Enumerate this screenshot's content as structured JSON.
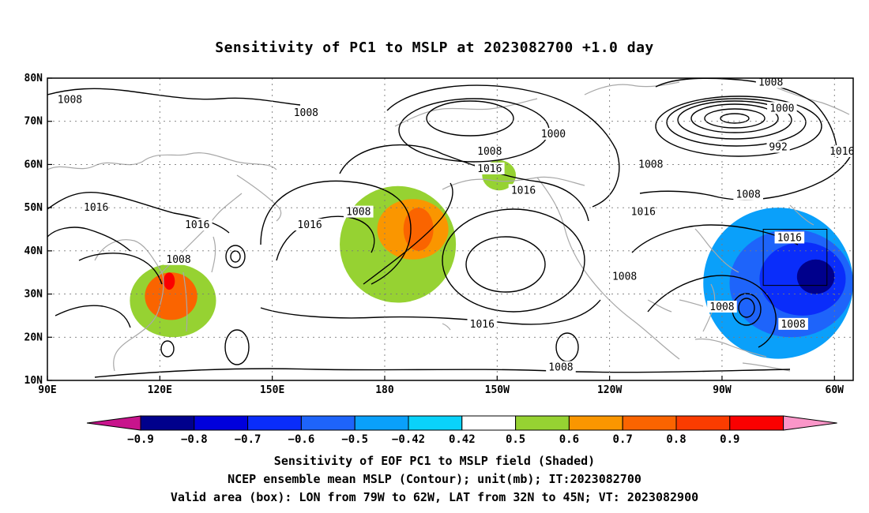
{
  "title": "Sensitivity of PC1 to MSLP at 2023082700 +1.0 day",
  "map": {
    "lat_ticks": [
      "80N",
      "70N",
      "60N",
      "50N",
      "40N",
      "30N",
      "20N",
      "10N"
    ],
    "lon_ticks": [
      "90E",
      "120E",
      "150E",
      "180",
      "150W",
      "120W",
      "90W",
      "60W"
    ],
    "lat_range": [
      10,
      80
    ],
    "lon_range_east": [
      90,
      305
    ],
    "contour_labels": [
      {
        "text": "1008",
        "lon": 96,
        "lat": 75
      },
      {
        "text": "1008",
        "lon": 159,
        "lat": 72
      },
      {
        "text": "1000",
        "lon": 225,
        "lat": 67
      },
      {
        "text": "1008",
        "lon": 283,
        "lat": 79
      },
      {
        "text": "1000",
        "lon": 286,
        "lat": 73
      },
      {
        "text": "992",
        "lon": 285,
        "lat": 64
      },
      {
        "text": "1016",
        "lon": 302,
        "lat": 63
      },
      {
        "text": "1008",
        "lon": 208,
        "lat": 63
      },
      {
        "text": "1016",
        "lon": 208,
        "lat": 59
      },
      {
        "text": "1008",
        "lon": 251,
        "lat": 60
      },
      {
        "text": "1016",
        "lon": 217,
        "lat": 54
      },
      {
        "text": "1008",
        "lon": 277,
        "lat": 53
      },
      {
        "text": "1016",
        "lon": 103,
        "lat": 50
      },
      {
        "text": "1008",
        "lon": 173,
        "lat": 49
      },
      {
        "text": "1016",
        "lon": 249,
        "lat": 49
      },
      {
        "text": "1016",
        "lon": 130,
        "lat": 46
      },
      {
        "text": "1016",
        "lon": 160,
        "lat": 46
      },
      {
        "text": "1016",
        "lon": 288,
        "lat": 43
      },
      {
        "text": "1008",
        "lon": 125,
        "lat": 38
      },
      {
        "text": "1008",
        "lon": 244,
        "lat": 34
      },
      {
        "text": "1008",
        "lon": 270,
        "lat": 27
      },
      {
        "text": "1008",
        "lon": 289,
        "lat": 23
      },
      {
        "text": "1016",
        "lon": 206,
        "lat": 23
      },
      {
        "text": "1008",
        "lon": 227,
        "lat": 13
      }
    ],
    "shaded_regions": [
      {
        "level": "0.42",
        "lat": [
          28,
          55
        ],
        "lon": [
          168,
          199
        ]
      },
      {
        "level": "0.5",
        "lat": [
          38,
          52
        ],
        "lon": [
          178,
          197
        ]
      },
      {
        "level": "0.6",
        "lat": [
          40,
          50
        ],
        "lon": [
          185,
          193
        ]
      },
      {
        "level": "0.42",
        "lat": [
          20,
          37
        ],
        "lon": [
          112,
          135
        ]
      },
      {
        "level": "0.6",
        "lat": [
          24,
          35
        ],
        "lon": [
          116,
          130
        ]
      },
      {
        "level": "0.8",
        "lat": [
          31,
          35
        ],
        "lon": [
          121,
          124
        ]
      },
      {
        "level": "0.42",
        "lat": [
          54,
          61
        ],
        "lon": [
          206,
          215
        ]
      },
      {
        "level": "-0.42",
        "lat": [
          15,
          50
        ],
        "lon": [
          265,
          305
        ]
      },
      {
        "level": "-0.5",
        "lat": [
          20,
          45
        ],
        "lon": [
          272,
          305
        ]
      },
      {
        "level": "-0.6",
        "lat": [
          25,
          42
        ],
        "lon": [
          280,
          303
        ]
      },
      {
        "level": "-0.8",
        "lat": [
          30,
          38
        ],
        "lon": [
          290,
          300
        ]
      }
    ],
    "valid_box": {
      "lon": [
        281,
        298
      ],
      "lat": [
        32,
        45
      ]
    }
  },
  "colorbar": {
    "labels": [
      "-0.9",
      "-0.8",
      "-0.7",
      "-0.6",
      "-0.5",
      "-0.42",
      "0.42",
      "0.5",
      "0.6",
      "0.7",
      "0.8",
      "0.9"
    ],
    "colors": [
      "#00008c",
      "#0000dc",
      "#0a2dfa",
      "#1e64fa",
      "#0aa0fa",
      "#0ad2fa",
      "#ffffff",
      "#96d232",
      "#fa9600",
      "#fa6400",
      "#fa3c00",
      "#fa0000"
    ],
    "left_tip_color": "#c8148c",
    "right_tip_color": "#fa96c8"
  },
  "captions": [
    "Sensitivity of EOF PC1 to MSLP field (Shaded)",
    "NCEP ensemble mean MSLP (Contour); unit(mb); IT:2023082700",
    "Valid area (box): LON from 79W to 62W, LAT from 32N to 45N; VT: 2023082900"
  ]
}
